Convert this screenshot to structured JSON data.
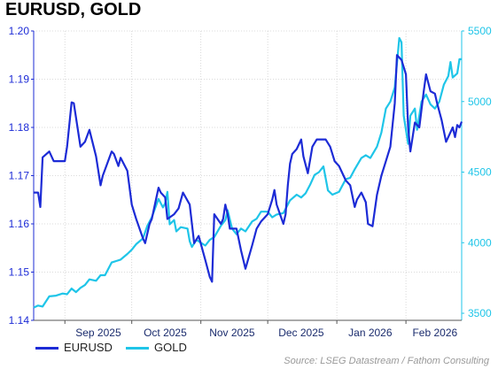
{
  "chart_data": {
    "type": "line",
    "title": "EURUSD, GOLD",
    "x_ticks": [
      "Sep 2025",
      "Oct 2025",
      "Nov 2025",
      "Dec 2025",
      "Jan 2026",
      "Feb 2026"
    ],
    "y_left": {
      "ylim": [
        1.14,
        1.2
      ],
      "ticks": [
        "1.14",
        "1.15",
        "1.16",
        "1.17",
        "1.18",
        "1.19",
        "1.20"
      ],
      "color": "#1c2bd6"
    },
    "y_right": {
      "ylim": [
        3450,
        5500
      ],
      "ticks": [
        "3500",
        "4000",
        "4500",
        "5000",
        "5500"
      ],
      "color": "#1fc5e8"
    },
    "x_range": [
      "2025-08-18",
      "2026-02-26"
    ],
    "grid": true,
    "legend_position": "bottom-left",
    "series": [
      {
        "name": "EURUSD",
        "axis": "left",
        "color": "#1c2bd6",
        "points": [
          [
            "2025-08-18",
            1.1665
          ],
          [
            "2025-08-20",
            1.1665
          ],
          [
            "2025-08-21",
            1.1635
          ],
          [
            "2025-08-22",
            1.1738
          ],
          [
            "2025-08-25",
            1.175
          ],
          [
            "2025-08-27",
            1.173
          ],
          [
            "2025-08-29",
            1.173
          ],
          [
            "2025-09-01",
            1.173
          ],
          [
            "2025-09-02",
            1.176
          ],
          [
            "2025-09-04",
            1.1852
          ],
          [
            "2025-09-05",
            1.185
          ],
          [
            "2025-09-08",
            1.176
          ],
          [
            "2025-09-10",
            1.177
          ],
          [
            "2025-09-12",
            1.1795
          ],
          [
            "2025-09-15",
            1.174
          ],
          [
            "2025-09-17",
            1.168
          ],
          [
            "2025-09-18",
            1.17
          ],
          [
            "2025-09-22",
            1.175
          ],
          [
            "2025-09-23",
            1.1745
          ],
          [
            "2025-09-25",
            1.172
          ],
          [
            "2025-09-26",
            1.1737
          ],
          [
            "2025-09-29",
            1.171
          ],
          [
            "2025-10-01",
            1.164
          ],
          [
            "2025-10-03",
            1.161
          ],
          [
            "2025-10-06",
            1.157
          ],
          [
            "2025-10-07",
            1.156
          ],
          [
            "2025-10-09",
            1.16
          ],
          [
            "2025-10-10",
            1.161
          ],
          [
            "2025-10-13",
            1.1675
          ],
          [
            "2025-10-14",
            1.1665
          ],
          [
            "2025-10-16",
            1.1655
          ],
          [
            "2025-10-17",
            1.161
          ],
          [
            "2025-10-20",
            1.162
          ],
          [
            "2025-10-22",
            1.1632
          ],
          [
            "2025-10-24",
            1.1665
          ],
          [
            "2025-10-27",
            1.164
          ],
          [
            "2025-10-28",
            1.16
          ],
          [
            "2025-10-29",
            1.156
          ],
          [
            "2025-10-31",
            1.1575
          ],
          [
            "2025-11-03",
            1.1525
          ],
          [
            "2025-11-05",
            1.149
          ],
          [
            "2025-11-06",
            1.148
          ],
          [
            "2025-11-07",
            1.162
          ],
          [
            "2025-11-10",
            1.16
          ],
          [
            "2025-11-11",
            1.161
          ],
          [
            "2025-11-12",
            1.164
          ],
          [
            "2025-11-13",
            1.162
          ],
          [
            "2025-11-14",
            1.159
          ],
          [
            "2025-11-17",
            1.159
          ],
          [
            "2025-11-19",
            1.1545
          ],
          [
            "2025-11-21",
            1.1507
          ],
          [
            "2025-11-24",
            1.1555
          ],
          [
            "2025-11-26",
            1.159
          ],
          [
            "2025-11-28",
            1.1605
          ],
          [
            "2025-12-01",
            1.162
          ],
          [
            "2025-12-03",
            1.165
          ],
          [
            "2025-12-04",
            1.167
          ],
          [
            "2025-12-05",
            1.164
          ],
          [
            "2025-12-08",
            1.16
          ],
          [
            "2025-12-09",
            1.162
          ],
          [
            "2025-12-10",
            1.168
          ],
          [
            "2025-12-11",
            1.1725
          ],
          [
            "2025-12-12",
            1.1745
          ],
          [
            "2025-12-14",
            1.1755
          ],
          [
            "2025-12-16",
            1.1775
          ],
          [
            "2025-12-17",
            1.174
          ],
          [
            "2025-12-19",
            1.1705
          ],
          [
            "2025-12-21",
            1.176
          ],
          [
            "2025-12-23",
            1.1775
          ],
          [
            "2025-12-27",
            1.1775
          ],
          [
            "2025-12-29",
            1.176
          ],
          [
            "2025-12-31",
            1.173
          ],
          [
            "2026-01-02",
            1.172
          ],
          [
            "2026-01-05",
            1.169
          ],
          [
            "2026-01-07",
            1.168
          ],
          [
            "2026-01-09",
            1.1635
          ],
          [
            "2026-01-10",
            1.165
          ],
          [
            "2026-01-12",
            1.1665
          ],
          [
            "2026-01-14",
            1.1645
          ],
          [
            "2026-01-15",
            1.16
          ],
          [
            "2026-01-17",
            1.1595
          ],
          [
            "2026-01-19",
            1.166
          ],
          [
            "2026-01-21",
            1.17
          ],
          [
            "2026-01-23",
            1.173
          ],
          [
            "2026-01-25",
            1.176
          ],
          [
            "2026-01-27",
            1.185
          ],
          [
            "2026-01-28",
            1.195
          ],
          [
            "2026-01-30",
            1.194
          ],
          [
            "2026-02-01",
            1.191
          ],
          [
            "2026-02-02",
            1.18
          ],
          [
            "2026-02-03",
            1.175
          ],
          [
            "2026-02-05",
            1.181
          ],
          [
            "2026-02-07",
            1.18
          ],
          [
            "2026-02-09",
            1.1875
          ],
          [
            "2026-02-10",
            1.191
          ],
          [
            "2026-02-12",
            1.1875
          ],
          [
            "2026-02-14",
            1.187
          ],
          [
            "2026-02-15",
            1.185
          ],
          [
            "2026-02-17",
            1.1815
          ],
          [
            "2026-02-19",
            1.177
          ],
          [
            "2026-02-21",
            1.179
          ],
          [
            "2026-02-22",
            1.18
          ],
          [
            "2026-02-23",
            1.178
          ],
          [
            "2026-02-24",
            1.1805
          ],
          [
            "2026-02-25",
            1.18
          ],
          [
            "2026-02-26",
            1.1812
          ]
        ]
      },
      {
        "name": "GOLD",
        "axis": "right",
        "color": "#1fc5e8",
        "points": [
          [
            "2025-08-18",
            3540
          ],
          [
            "2025-08-20",
            3555
          ],
          [
            "2025-08-22",
            3548
          ],
          [
            "2025-08-25",
            3620
          ],
          [
            "2025-08-28",
            3625
          ],
          [
            "2025-08-31",
            3640
          ],
          [
            "2025-09-02",
            3635
          ],
          [
            "2025-09-04",
            3675
          ],
          [
            "2025-09-06",
            3650
          ],
          [
            "2025-09-08",
            3680
          ],
          [
            "2025-09-10",
            3700
          ],
          [
            "2025-09-12",
            3740
          ],
          [
            "2025-09-15",
            3730
          ],
          [
            "2025-09-17",
            3770
          ],
          [
            "2025-09-19",
            3770
          ],
          [
            "2025-09-22",
            3860
          ],
          [
            "2025-09-24",
            3870
          ],
          [
            "2025-09-26",
            3880
          ],
          [
            "2025-09-29",
            3920
          ],
          [
            "2025-10-01",
            3950
          ],
          [
            "2025-10-03",
            3990
          ],
          [
            "2025-10-06",
            4030
          ],
          [
            "2025-10-08",
            4120
          ],
          [
            "2025-10-10",
            4180
          ],
          [
            "2025-10-13",
            4310
          ],
          [
            "2025-10-15",
            4250
          ],
          [
            "2025-10-16",
            4280
          ],
          [
            "2025-10-17",
            4360
          ],
          [
            "2025-10-18",
            4130
          ],
          [
            "2025-10-20",
            4160
          ],
          [
            "2025-10-21",
            4080
          ],
          [
            "2025-10-23",
            4110
          ],
          [
            "2025-10-26",
            4100
          ],
          [
            "2025-10-27",
            4010
          ],
          [
            "2025-10-28",
            3970
          ],
          [
            "2025-10-30",
            4020
          ],
          [
            "2025-11-01",
            4000
          ],
          [
            "2025-11-03",
            3980
          ],
          [
            "2025-11-05",
            4020
          ],
          [
            "2025-11-07",
            4040
          ],
          [
            "2025-11-10",
            4120
          ],
          [
            "2025-11-12",
            4160
          ],
          [
            "2025-11-13",
            4230
          ],
          [
            "2025-11-15",
            4100
          ],
          [
            "2025-11-17",
            4060
          ],
          [
            "2025-11-19",
            4100
          ],
          [
            "2025-11-21",
            4080
          ],
          [
            "2025-11-24",
            4150
          ],
          [
            "2025-11-26",
            4170
          ],
          [
            "2025-11-28",
            4220
          ],
          [
            "2025-12-01",
            4220
          ],
          [
            "2025-12-03",
            4180
          ],
          [
            "2025-12-05",
            4200
          ],
          [
            "2025-12-08",
            4210
          ],
          [
            "2025-12-11",
            4300
          ],
          [
            "2025-12-14",
            4340
          ],
          [
            "2025-12-16",
            4320
          ],
          [
            "2025-12-18",
            4350
          ],
          [
            "2025-12-20",
            4410
          ],
          [
            "2025-12-22",
            4480
          ],
          [
            "2025-12-24",
            4500
          ],
          [
            "2025-12-26",
            4540
          ],
          [
            "2025-12-28",
            4370
          ],
          [
            "2025-12-30",
            4340
          ],
          [
            "2026-01-02",
            4360
          ],
          [
            "2026-01-05",
            4450
          ],
          [
            "2026-01-07",
            4460
          ],
          [
            "2026-01-09",
            4520
          ],
          [
            "2026-01-12",
            4600
          ],
          [
            "2026-01-14",
            4620
          ],
          [
            "2026-01-16",
            4600
          ],
          [
            "2026-01-19",
            4680
          ],
          [
            "2026-01-21",
            4780
          ],
          [
            "2026-01-23",
            4950
          ],
          [
            "2026-01-25",
            5000
          ],
          [
            "2026-01-27",
            5100
          ],
          [
            "2026-01-29",
            5450
          ],
          [
            "2026-01-30",
            5420
          ],
          [
            "2026-01-31",
            4900
          ],
          [
            "2026-02-01",
            4800
          ],
          [
            "2026-02-02",
            4700
          ],
          [
            "2026-02-03",
            4900
          ],
          [
            "2026-02-05",
            4950
          ],
          [
            "2026-02-06",
            4800
          ],
          [
            "2026-02-08",
            5000
          ],
          [
            "2026-02-10",
            5050
          ],
          [
            "2026-02-12",
            4980
          ],
          [
            "2026-02-14",
            4950
          ],
          [
            "2026-02-16",
            5000
          ],
          [
            "2026-02-18",
            5120
          ],
          [
            "2026-02-20",
            5180
          ],
          [
            "2026-02-21",
            5280
          ],
          [
            "2026-02-22",
            5170
          ],
          [
            "2026-02-24",
            5200
          ],
          [
            "2026-02-25",
            5300
          ],
          [
            "2026-02-26",
            5300
          ]
        ]
      }
    ]
  },
  "source": "Source: LSEG Datastream / Fathom Consulting"
}
